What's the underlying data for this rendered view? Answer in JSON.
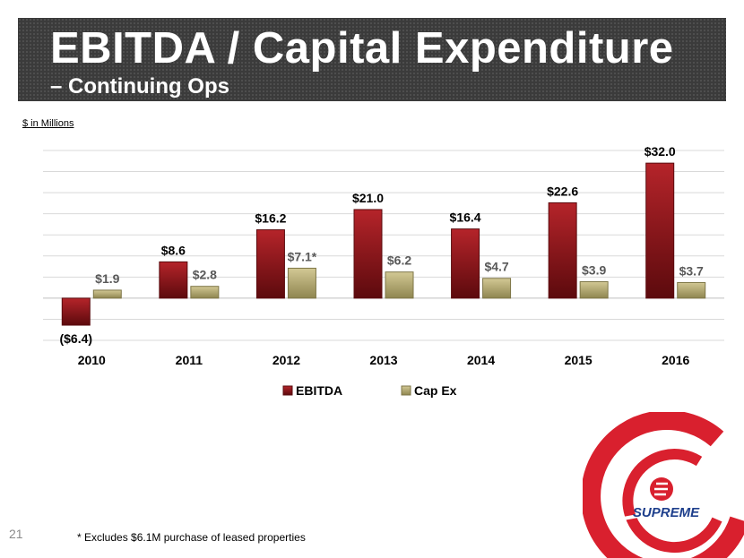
{
  "header": {
    "title": "EBITDA / Capital Expenditure",
    "subtitle": "– Continuing Ops"
  },
  "units_label": "$ in Millions",
  "page_number": "21",
  "footnote": "* Excludes $6.1M purchase of leased properties",
  "logo": {
    "text": "SUPREME"
  },
  "colors": {
    "ebitda": "#8b1418",
    "capex": "#b8ad72",
    "title_bg": "#3b3b3b",
    "logo_red": "#d9202e"
  },
  "chart_data": {
    "type": "bar",
    "title": "",
    "xlabel": "",
    "ylabel": "",
    "ylim": [
      -10,
      35
    ],
    "grid": true,
    "legend_position": "bottom",
    "categories": [
      "2010",
      "2011",
      "2012",
      "2013",
      "2014",
      "2015",
      "2016"
    ],
    "series": [
      {
        "name": "EBITDA",
        "values": [
          -6.4,
          8.6,
          16.2,
          21.0,
          16.4,
          22.6,
          32.0
        ],
        "labels": [
          "($6.4)",
          "$8.6",
          "$16.2",
          "$21.0",
          "$16.4",
          "$22.6",
          "$32.0"
        ]
      },
      {
        "name": "Cap Ex",
        "values": [
          1.9,
          2.8,
          7.1,
          6.2,
          4.7,
          3.9,
          3.7
        ],
        "labels": [
          "$1.9",
          "$2.8",
          "$7.1*",
          "$6.2",
          "$4.7",
          "$3.9",
          "$3.7"
        ]
      }
    ]
  }
}
